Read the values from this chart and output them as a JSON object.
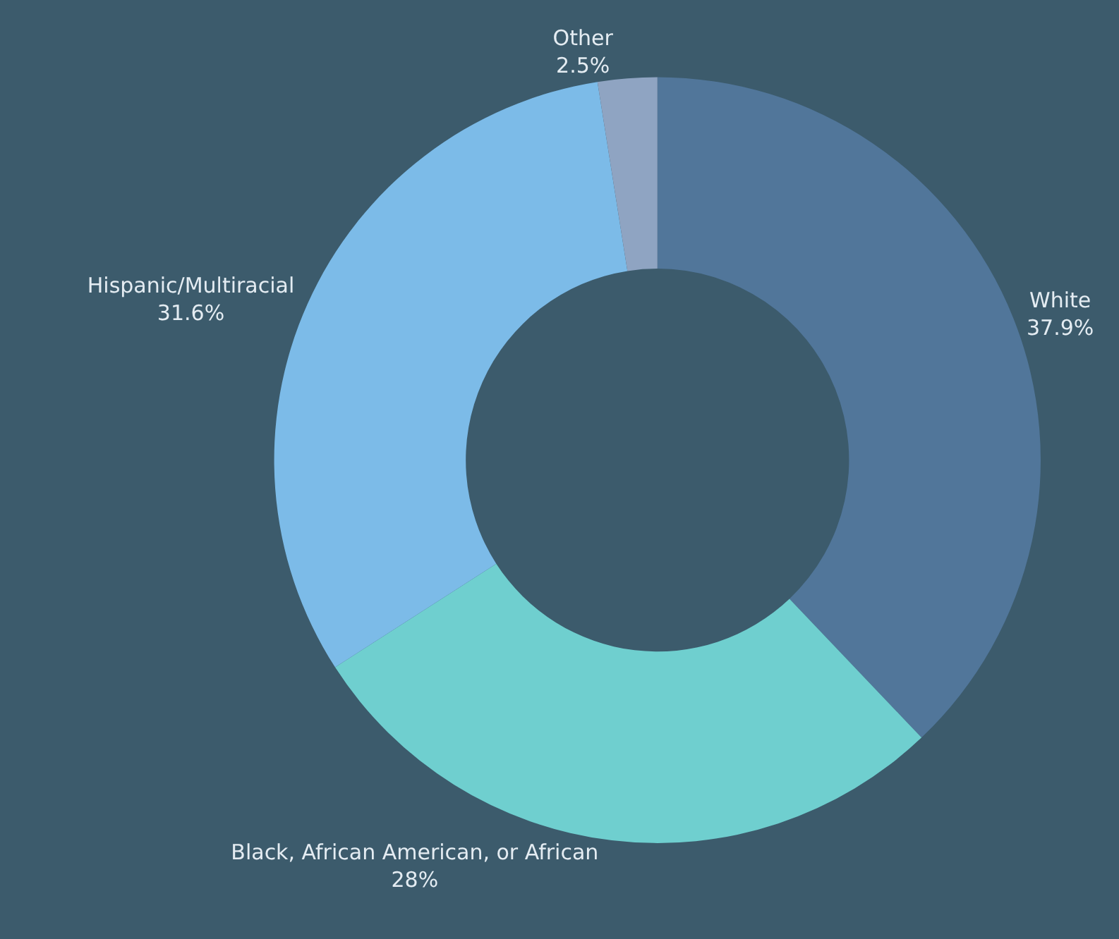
{
  "chart_data": {
    "type": "donut",
    "categories": [
      "White",
      "Black, African American, or African",
      "Hispanic/Multiracial",
      "Other"
    ],
    "values": [
      37.9,
      28,
      31.6,
      2.5
    ],
    "value_labels": [
      "37.9%",
      "28%",
      "31.6%",
      "2.5%"
    ],
    "colors": [
      "#51769a",
      "#6fcfcf",
      "#7cbbe8",
      "#8fa4c2"
    ],
    "legend": false
  }
}
